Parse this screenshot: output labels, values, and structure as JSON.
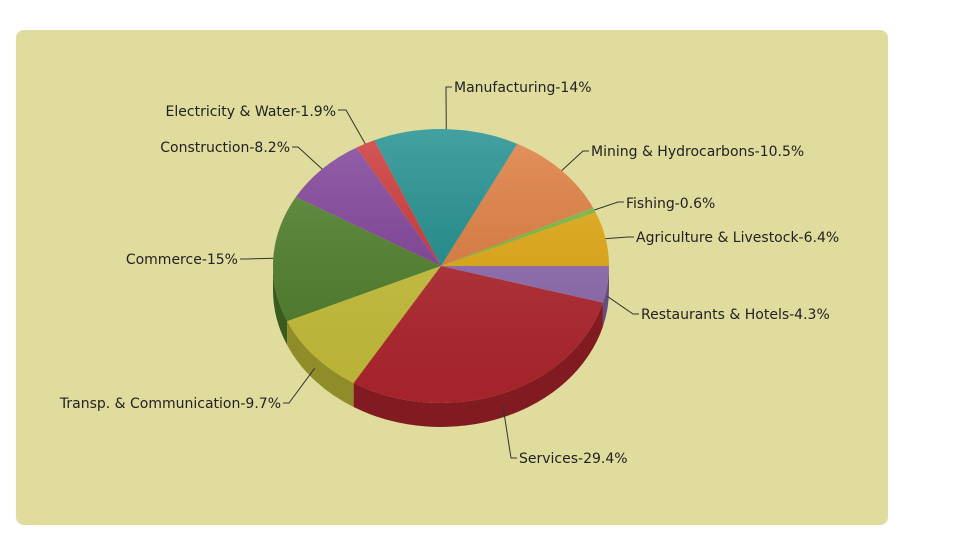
{
  "chart_data": {
    "type": "pie",
    "title": "",
    "categories": [
      "Agriculture & Livestock",
      "Fishing",
      "Mining & Hydrocarbons",
      "Manufacturing",
      "Electricity & Water",
      "Construction",
      "Commerce",
      "Transp. & Communication",
      "Services",
      "Restaurants & Hotels"
    ],
    "values": [
      6.4,
      0.6,
      10.5,
      14,
      1.9,
      8.2,
      15,
      9.7,
      29.4,
      4.3
    ],
    "labels": [
      "Agriculture & Livestock-6.4%",
      "Fishing-0.6%",
      "Mining & Hydrocarbons-10.5%",
      "Manufacturing-14%",
      "Electricity & Water-1.9%",
      "Construction-8.2%",
      "Commerce-15%",
      "Transp. & Communication-9.7%",
      "Services-29.4%",
      "Restaurants & Hotels-4.3%"
    ],
    "colors": [
      "#e3a90f",
      "#7cb83a",
      "#e07b3c",
      "#1b8c8c",
      "#cc3333",
      "#7f3f98",
      "#4f7f2a",
      "#c9c23a",
      "#b3262e",
      "#8e6bb0"
    ],
    "legend": "none",
    "style": "3d"
  }
}
